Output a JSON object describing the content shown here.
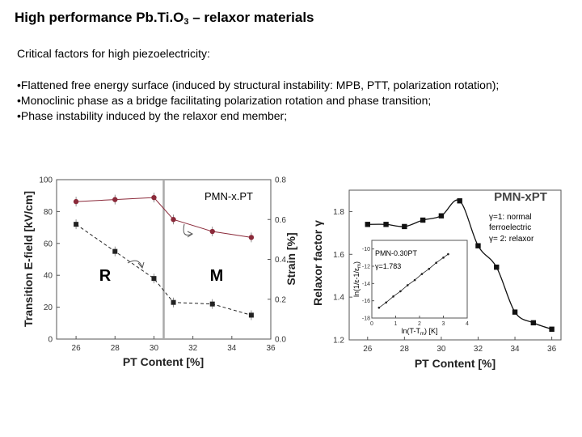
{
  "title": {
    "main": "High performance Pb.Ti.O",
    "sub": "3",
    "rest": " – relaxor materials"
  },
  "subheading": "Critical factors for high piezoelectricity:",
  "bullets": [
    "•Flattened free energy surface (induced by structural instability: MPB, PTT, polarization rotation);",
    "•Monoclinic phase as a bridge facilitating polarization rotation and phase transition;",
    "•Phase instability induced by the relaxor end member;"
  ],
  "chart_data": [
    {
      "type": "line",
      "title": "PMN-x.PT",
      "xlabel": "PT Content [%]",
      "ylabel": "Transition E-field [kV/cm]",
      "y2label": "Strain [%]",
      "xlim": [
        25,
        36
      ],
      "ylim": [
        0,
        100
      ],
      "y2lim": [
        0,
        0.8
      ],
      "x_ticks": [
        "26",
        "28",
        "30",
        "32",
        "34",
        "36"
      ],
      "y_ticks": [
        "0",
        "20",
        "40",
        "60",
        "80",
        "100"
      ],
      "y2_ticks": [
        "0.0",
        "0.2",
        "0.4",
        "0.6",
        "0.8"
      ],
      "series": [
        {
          "axis": "left",
          "marker": "square",
          "color": "#222222",
          "x": [
            26,
            28,
            30,
            31,
            33,
            35
          ],
          "y": [
            72,
            55,
            38,
            23,
            22,
            15
          ]
        },
        {
          "axis": "right",
          "marker": "circle",
          "color": "#8b2a3a",
          "x": [
            26,
            28,
            30,
            31,
            33,
            35
          ],
          "y": [
            0.69,
            0.7,
            0.71,
            0.6,
            0.54,
            0.51
          ]
        }
      ],
      "vline_x": 30.5,
      "annotations": [
        "R",
        "M"
      ],
      "grid": false
    },
    {
      "type": "line",
      "title": "PMN-xPT",
      "xlabel": "PT Content [%]",
      "ylabel": "Relaxor factor γ",
      "xlim": [
        25,
        36.5
      ],
      "ylim": [
        1.2,
        1.9
      ],
      "x_ticks": [
        "26",
        "28",
        "30",
        "32",
        "34",
        "36"
      ],
      "y_ticks": [
        "1.2",
        "1.4",
        "1.6",
        "1.8"
      ],
      "series": [
        {
          "marker": "square",
          "color": "#111111",
          "x": [
            26,
            27,
            28,
            29,
            30,
            31,
            32,
            33,
            34,
            35,
            36
          ],
          "y": [
            1.74,
            1.74,
            1.73,
            1.76,
            1.78,
            1.85,
            1.64,
            1.54,
            1.33,
            1.28,
            1.25
          ]
        }
      ],
      "legend_text": [
        "γ=1: normal",
        "ferroelectric",
        "γ= 2: relaxor"
      ],
      "grid": false,
      "inset": {
        "type": "scatter",
        "title": "PMN-0.30PT",
        "annotation": "γ=1.783",
        "xlabel": "ln(T-T",
        "xlabel_sub": "m",
        "xlabel_tail": ") [K]",
        "ylabel": "ln(1/ε-1/ε",
        "ylabel_sub": "m",
        "ylabel_tail": ")",
        "xlim": [
          0,
          4
        ],
        "ylim": [
          -18,
          -9
        ],
        "x_ticks": [
          "0",
          "1",
          "2",
          "3",
          "4"
        ],
        "y_ticks": [
          "-10",
          "-12",
          "-14",
          "-16",
          "-18"
        ],
        "x": [
          0.3,
          0.6,
          0.9,
          1.2,
          1.5,
          1.8,
          2.1,
          2.4,
          2.7,
          3.0,
          3.2
        ],
        "y": [
          -16.8,
          -16.2,
          -15.5,
          -14.9,
          -14.2,
          -13.6,
          -12.9,
          -12.3,
          -11.6,
          -11.0,
          -10.6
        ]
      }
    }
  ]
}
